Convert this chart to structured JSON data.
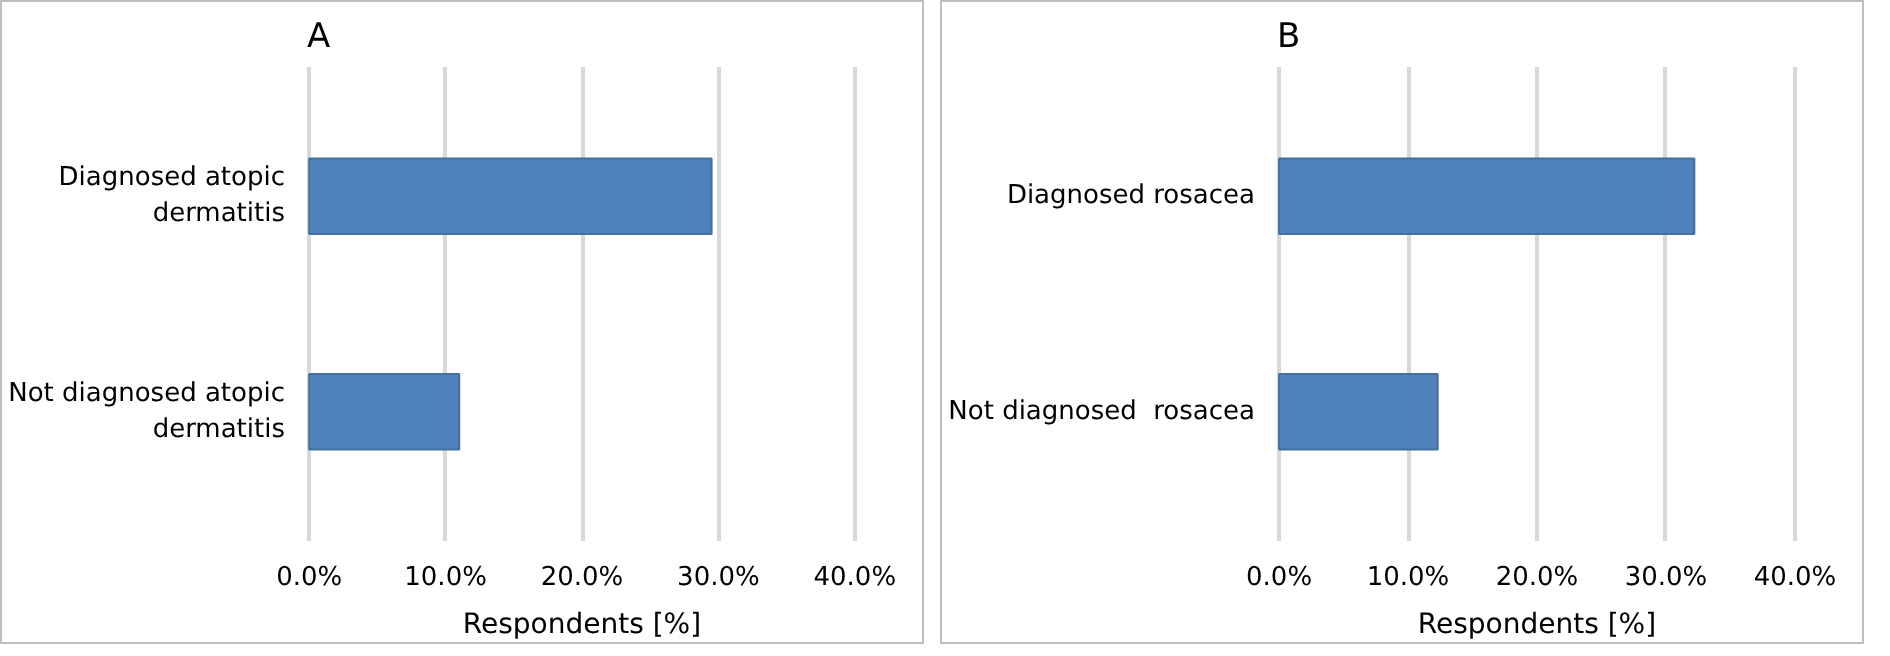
{
  "chart_data": [
    {
      "type": "bar",
      "orientation": "horizontal",
      "title": "A",
      "categories": [
        "Diagnosed atopic dermatitis",
        "Not diagnosed atopic dermatitis"
      ],
      "values": [
        29.5,
        11.0
      ],
      "color": "#4f81bd",
      "xlabel": "Respondents [%]",
      "xlim": [
        0,
        40
      ],
      "xticks": [
        {
          "value": 0,
          "label": "0.0%"
        },
        {
          "value": 10,
          "label": "10.0%"
        },
        {
          "value": 20,
          "label": "20.0%"
        },
        {
          "value": 30,
          "label": "30.0%"
        },
        {
          "value": 40,
          "label": "40.0%"
        }
      ],
      "grid": "x"
    },
    {
      "type": "bar",
      "orientation": "horizontal",
      "title": "B",
      "categories": [
        "Diagnosed rosacea",
        "Not diagnosed  rosacea"
      ],
      "values": [
        32.2,
        12.3
      ],
      "color": "#4f81bd",
      "xlabel": "Respondents [%]",
      "xlim": [
        0,
        40
      ],
      "xticks": [
        {
          "value": 0,
          "label": "0.0%"
        },
        {
          "value": 10,
          "label": "10.0%"
        },
        {
          "value": 20,
          "label": "20.0%"
        },
        {
          "value": 30,
          "label": "30.0%"
        },
        {
          "value": 40,
          "label": "40.0%"
        }
      ],
      "grid": "x"
    }
  ]
}
